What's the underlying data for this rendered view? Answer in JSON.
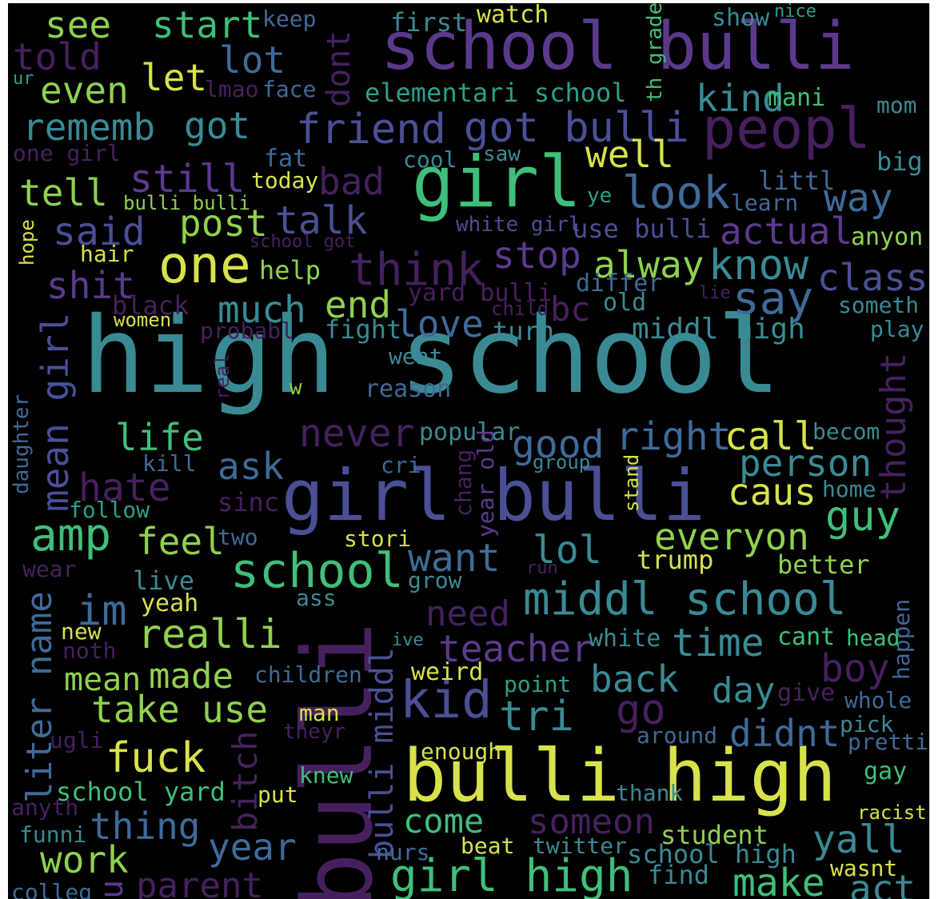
{
  "palette": {
    "background": "#000000",
    "purple": "#46205e",
    "violet": "#5b3a8c",
    "indigo": "#4a4f96",
    "blue": "#3f6a98",
    "teal": "#3a8a94",
    "sea": "#2f9e8a",
    "green": "#3fbf7a",
    "lime": "#8fd14f",
    "yellow": "#d8e24a"
  },
  "words": [
    {
      "text": "high school",
      "color": "#3a8a94"
    },
    {
      "text": "bulli",
      "color": "#46205e"
    },
    {
      "text": "girl bulli",
      "color": "#4a4f96"
    },
    {
      "text": "bulli high",
      "color": "#d8e24a"
    },
    {
      "text": "school bulli",
      "color": "#5b3a8c"
    },
    {
      "text": "girl",
      "color": "#3fbf7a"
    },
    {
      "text": "peopl",
      "color": "#46205e"
    },
    {
      "text": "middl school",
      "color": "#3a8a94"
    },
    {
      "text": "school",
      "color": "#3fbf7a"
    },
    {
      "text": "one",
      "color": "#d8e24a"
    },
    {
      "text": "kid",
      "color": "#4a4f96"
    },
    {
      "text": "girl high",
      "color": "#3fbf7a"
    },
    {
      "text": "see",
      "color": "#8fd14f"
    },
    {
      "text": "start",
      "color": "#3fbf7a"
    },
    {
      "text": "keep",
      "color": "#3f6a98"
    },
    {
      "text": "first",
      "color": "#3a8a94"
    },
    {
      "text": "watch",
      "color": "#d8e24a"
    },
    {
      "text": "show",
      "color": "#3a8a94"
    },
    {
      "text": "nice",
      "color": "#2f9e8a"
    },
    {
      "text": "told",
      "color": "#46205e"
    },
    {
      "text": "lot",
      "color": "#3f6a98"
    },
    {
      "text": "ur",
      "color": "#2f9e8a"
    },
    {
      "text": "let",
      "color": "#d8e24a"
    },
    {
      "text": "even",
      "color": "#8fd14f"
    },
    {
      "text": "lmao",
      "color": "#46205e"
    },
    {
      "text": "face",
      "color": "#3f6a98"
    },
    {
      "text": "dont",
      "color": "#46205e"
    },
    {
      "text": "elementari school",
      "color": "#2f9e8a"
    },
    {
      "text": "th grade",
      "color": "#3fbf7a"
    },
    {
      "text": "kind",
      "color": "#3a8a94"
    },
    {
      "text": "mani",
      "color": "#3fbf7a"
    },
    {
      "text": "mom",
      "color": "#3a8a94"
    },
    {
      "text": "rememb",
      "color": "#3a8a94"
    },
    {
      "text": "got",
      "color": "#3a8a94"
    },
    {
      "text": "friend",
      "color": "#4a4f96"
    },
    {
      "text": "got bulli",
      "color": "#4a4f96"
    },
    {
      "text": "one girl",
      "color": "#46205e"
    },
    {
      "text": "fat",
      "color": "#3f6a98"
    },
    {
      "text": "cool",
      "color": "#3a8a94"
    },
    {
      "text": "saw",
      "color": "#3a8a94"
    },
    {
      "text": "well",
      "color": "#d8e24a"
    },
    {
      "text": "big",
      "color": "#3a8a94"
    },
    {
      "text": "still",
      "color": "#5b3a8c"
    },
    {
      "text": "today",
      "color": "#d8e24a"
    },
    {
      "text": "bad",
      "color": "#46205e"
    },
    {
      "text": "littl",
      "color": "#3f6a98"
    },
    {
      "text": "tell",
      "color": "#8fd14f"
    },
    {
      "text": "bulli bulli",
      "color": "#8fd14f"
    },
    {
      "text": "ye",
      "color": "#2f9e8a"
    },
    {
      "text": "look",
      "color": "#3f6a98"
    },
    {
      "text": "learn",
      "color": "#3f6a98"
    },
    {
      "text": "way",
      "color": "#3f6a98"
    },
    {
      "text": "said",
      "color": "#4a4f96"
    },
    {
      "text": "post",
      "color": "#8fd14f"
    },
    {
      "text": "talk",
      "color": "#4a4f96"
    },
    {
      "text": "white girl",
      "color": "#4a4f96"
    },
    {
      "text": "use bulli",
      "color": "#4a4f96"
    },
    {
      "text": "actual",
      "color": "#5b3a8c"
    },
    {
      "text": "anyon",
      "color": "#8fd14f"
    },
    {
      "text": "hope",
      "color": "#d8e24a"
    },
    {
      "text": "school got",
      "color": "#46205e"
    },
    {
      "text": "hair",
      "color": "#d8e24a"
    },
    {
      "text": "think",
      "color": "#46205e"
    },
    {
      "text": "stop",
      "color": "#5b3a8c"
    },
    {
      "text": "alway",
      "color": "#8fd14f"
    },
    {
      "text": "know",
      "color": "#3a8a94"
    },
    {
      "text": "help",
      "color": "#8fd14f"
    },
    {
      "text": "class",
      "color": "#4a4f96"
    },
    {
      "text": "shit",
      "color": "#5b3a8c"
    },
    {
      "text": "differ",
      "color": "#3f6a98"
    },
    {
      "text": "say",
      "color": "#3f6a98"
    },
    {
      "text": "much",
      "color": "#3a8a94"
    },
    {
      "text": "end",
      "color": "#8fd14f"
    },
    {
      "text": "yard bulli",
      "color": "#46205e"
    },
    {
      "text": "lie",
      "color": "#46205e"
    },
    {
      "text": "black",
      "color": "#46205e"
    },
    {
      "text": "child",
      "color": "#46205e"
    },
    {
      "text": "bc",
      "color": "#46205e"
    },
    {
      "text": "old",
      "color": "#3a8a94"
    },
    {
      "text": "someth",
      "color": "#3a8a94"
    },
    {
      "text": "women",
      "color": "#d8e24a"
    },
    {
      "text": "probabl",
      "color": "#46205e"
    },
    {
      "text": "fight",
      "color": "#3a8a94"
    },
    {
      "text": "love",
      "color": "#3f6a98"
    },
    {
      "text": "turn",
      "color": "#3a8a94"
    },
    {
      "text": "middl high",
      "color": "#3a8a94"
    },
    {
      "text": "play",
      "color": "#3a8a94"
    },
    {
      "text": "mean girl",
      "color": "#4a4f96"
    },
    {
      "text": "real",
      "color": "#46205e"
    },
    {
      "text": "went",
      "color": "#3a8a94"
    },
    {
      "text": "w",
      "color": "#8fd14f"
    },
    {
      "text": "reason",
      "color": "#3f6a98"
    },
    {
      "text": "thought",
      "color": "#46205e"
    },
    {
      "text": "daughter",
      "color": "#3f6a98"
    },
    {
      "text": "life",
      "color": "#3fbf7a"
    },
    {
      "text": "never",
      "color": "#46205e"
    },
    {
      "text": "popular",
      "color": "#3a8a94"
    },
    {
      "text": "good",
      "color": "#3f6a98"
    },
    {
      "text": "right",
      "color": "#3f6a98"
    },
    {
      "text": "call",
      "color": "#d8e24a"
    },
    {
      "text": "becom",
      "color": "#3a8a94"
    },
    {
      "text": "kill",
      "color": "#3f6a98"
    },
    {
      "text": "ask",
      "color": "#3f6a98"
    },
    {
      "text": "cri",
      "color": "#3f6a98"
    },
    {
      "text": "group",
      "color": "#3a8a94"
    },
    {
      "text": "person",
      "color": "#3a8a94"
    },
    {
      "text": "hate",
      "color": "#46205e"
    },
    {
      "text": "chang",
      "color": "#46205e"
    },
    {
      "text": "year old",
      "color": "#5b3a8c"
    },
    {
      "text": "stand",
      "color": "#d8e24a"
    },
    {
      "text": "caus",
      "color": "#d8e24a"
    },
    {
      "text": "home",
      "color": "#3a8a94"
    },
    {
      "text": "follow",
      "color": "#2f9e8a"
    },
    {
      "text": "sinc",
      "color": "#46205e"
    },
    {
      "text": "guy",
      "color": "#3fbf7a"
    },
    {
      "text": "amp",
      "color": "#3fbf7a"
    },
    {
      "text": "feel",
      "color": "#8fd14f"
    },
    {
      "text": "two",
      "color": "#3f6a98"
    },
    {
      "text": "stori",
      "color": "#d8e24a"
    },
    {
      "text": "everyon",
      "color": "#8fd14f"
    },
    {
      "text": "lol",
      "color": "#3a8a94"
    },
    {
      "text": "want",
      "color": "#3f6a98"
    },
    {
      "text": "trump",
      "color": "#d8e24a"
    },
    {
      "text": "wear",
      "color": "#46205e"
    },
    {
      "text": "run",
      "color": "#46205e"
    },
    {
      "text": "better",
      "color": "#8fd14f"
    },
    {
      "text": "live",
      "color": "#3a8a94"
    },
    {
      "text": "grow",
      "color": "#3a8a94"
    },
    {
      "text": "im",
      "color": "#3f6a98"
    },
    {
      "text": "yeah",
      "color": "#d8e24a"
    },
    {
      "text": "ass",
      "color": "#3a8a94"
    },
    {
      "text": "need",
      "color": "#46205e"
    },
    {
      "text": "liter name",
      "color": "#3f6a98"
    },
    {
      "text": "new",
      "color": "#d8e24a"
    },
    {
      "text": "realli",
      "color": "#8fd14f"
    },
    {
      "text": "ive",
      "color": "#3a8a94"
    },
    {
      "text": "teacher",
      "color": "#5b3a8c"
    },
    {
      "text": "white",
      "color": "#3a8a94"
    },
    {
      "text": "time",
      "color": "#3a8a94"
    },
    {
      "text": "cant",
      "color": "#3fbf7a"
    },
    {
      "text": "head",
      "color": "#3fbf7a"
    },
    {
      "text": "happen",
      "color": "#3f6a98"
    },
    {
      "text": "noth",
      "color": "#46205e"
    },
    {
      "text": "boy",
      "color": "#46205e"
    },
    {
      "text": "bulli middl",
      "color": "#4a4f96"
    },
    {
      "text": "mean",
      "color": "#8fd14f"
    },
    {
      "text": "made",
      "color": "#8fd14f"
    },
    {
      "text": "children",
      "color": "#3f6a98"
    },
    {
      "text": "weird",
      "color": "#d8e24a"
    },
    {
      "text": "point",
      "color": "#2f9e8a"
    },
    {
      "text": "back",
      "color": "#3a8a94"
    },
    {
      "text": "day",
      "color": "#3a8a94"
    },
    {
      "text": "give",
      "color": "#46205e"
    },
    {
      "text": "whole",
      "color": "#3f6a98"
    },
    {
      "text": "take",
      "color": "#8fd14f"
    },
    {
      "text": "use",
      "color": "#8fd14f"
    },
    {
      "text": "man",
      "color": "#d8e24a"
    },
    {
      "text": "tri",
      "color": "#3a8a94"
    },
    {
      "text": "go",
      "color": "#46205e"
    },
    {
      "text": "around",
      "color": "#3f6a98"
    },
    {
      "text": "didnt",
      "color": "#3f6a98"
    },
    {
      "text": "pick",
      "color": "#3a8a94"
    },
    {
      "text": "pretti",
      "color": "#3f6a98"
    },
    {
      "text": "theyr",
      "color": "#46205e"
    },
    {
      "text": "ugli",
      "color": "#46205e"
    },
    {
      "text": "fuck",
      "color": "#d8e24a"
    },
    {
      "text": "bitch",
      "color": "#46205e"
    },
    {
      "text": "enough",
      "color": "#d8e24a"
    },
    {
      "text": "knew",
      "color": "#3fbf7a"
    },
    {
      "text": "gay",
      "color": "#3fbf7a"
    },
    {
      "text": "school yard",
      "color": "#3fbf7a"
    },
    {
      "text": "put",
      "color": "#d8e24a"
    },
    {
      "text": "thank",
      "color": "#3a8a94"
    },
    {
      "text": "anyth",
      "color": "#46205e"
    },
    {
      "text": "racist",
      "color": "#d8e24a"
    },
    {
      "text": "thing",
      "color": "#3f6a98"
    },
    {
      "text": "come",
      "color": "#3fbf7a"
    },
    {
      "text": "someon",
      "color": "#46205e"
    },
    {
      "text": "funni",
      "color": "#3a8a94"
    },
    {
      "text": "year",
      "color": "#3f6a98"
    },
    {
      "text": "student",
      "color": "#8fd14f"
    },
    {
      "text": "yall",
      "color": "#3a8a94"
    },
    {
      "text": "work",
      "color": "#8fd14f"
    },
    {
      "text": "nurs",
      "color": "#3f6a98"
    },
    {
      "text": "beat",
      "color": "#d8e24a"
    },
    {
      "text": "twitter",
      "color": "#3a8a94"
    },
    {
      "text": "school high",
      "color": "#3a8a94"
    },
    {
      "text": "find",
      "color": "#3a8a94"
    },
    {
      "text": "wasnt",
      "color": "#d8e24a"
    },
    {
      "text": "colleg",
      "color": "#3f6a98"
    },
    {
      "text": "u",
      "color": "#5b3a8c"
    },
    {
      "text": "parent",
      "color": "#46205e"
    },
    {
      "text": "make",
      "color": "#3fbf7a"
    },
    {
      "text": "act",
      "color": "#3a8a94"
    }
  ]
}
